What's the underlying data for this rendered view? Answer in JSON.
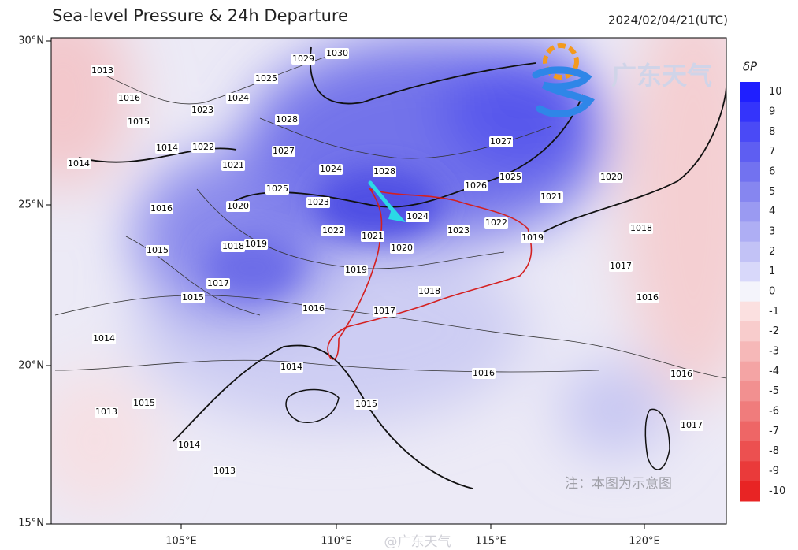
{
  "header": {
    "title": "Sea-level Pressure & 24h Departure",
    "timestamp": "2024/02/04/21(UTC)"
  },
  "axes": {
    "lat_labels": [
      "30°N",
      "25°N",
      "20°N",
      "15°N"
    ],
    "lon_labels": [
      "105°E",
      "110°E",
      "115°E",
      "120°E"
    ]
  },
  "colorbar": {
    "label": "δP",
    "ticks": [
      10,
      9,
      8,
      7,
      6,
      5,
      4,
      3,
      2,
      1,
      0,
      -1,
      -2,
      -3,
      -4,
      -5,
      -6,
      -7,
      -8,
      -9,
      -10
    ],
    "colors": [
      "#1f1fff",
      "#3434fb",
      "#4a4af6",
      "#5e5ef2",
      "#7272f0",
      "#8686f0",
      "#9a9af2",
      "#aeaef4",
      "#c2c2f6",
      "#d8d8fa",
      "#f4f4fb",
      "#fbe0e0",
      "#f8cccc",
      "#f6b8b8",
      "#f4a4a4",
      "#f29090",
      "#f07c7c",
      "#ee6666",
      "#ec5050",
      "#ea3a3a",
      "#e82424"
    ]
  },
  "isobar_labels": [
    1030,
    1029,
    1025,
    1024,
    1023,
    1028,
    1027,
    1024,
    1028,
    1025,
    1023,
    1020,
    1022,
    1021,
    1024,
    1023,
    1022,
    1020,
    1019,
    1019,
    1018,
    1017,
    1016,
    1017,
    1018,
    1015,
    1016,
    1015,
    1014,
    1015,
    1016,
    1013,
    1022,
    1021,
    1014,
    1027,
    1026,
    1025,
    1021,
    1020,
    1019,
    1018,
    1017,
    1016,
    1016,
    1015,
    1014,
    1016,
    1017,
    1015,
    1014,
    1013,
    1013,
    1014
  ],
  "logo": {
    "text": "广东天气"
  },
  "note": "注：本图为示意图",
  "watermark": "@广东天气"
}
